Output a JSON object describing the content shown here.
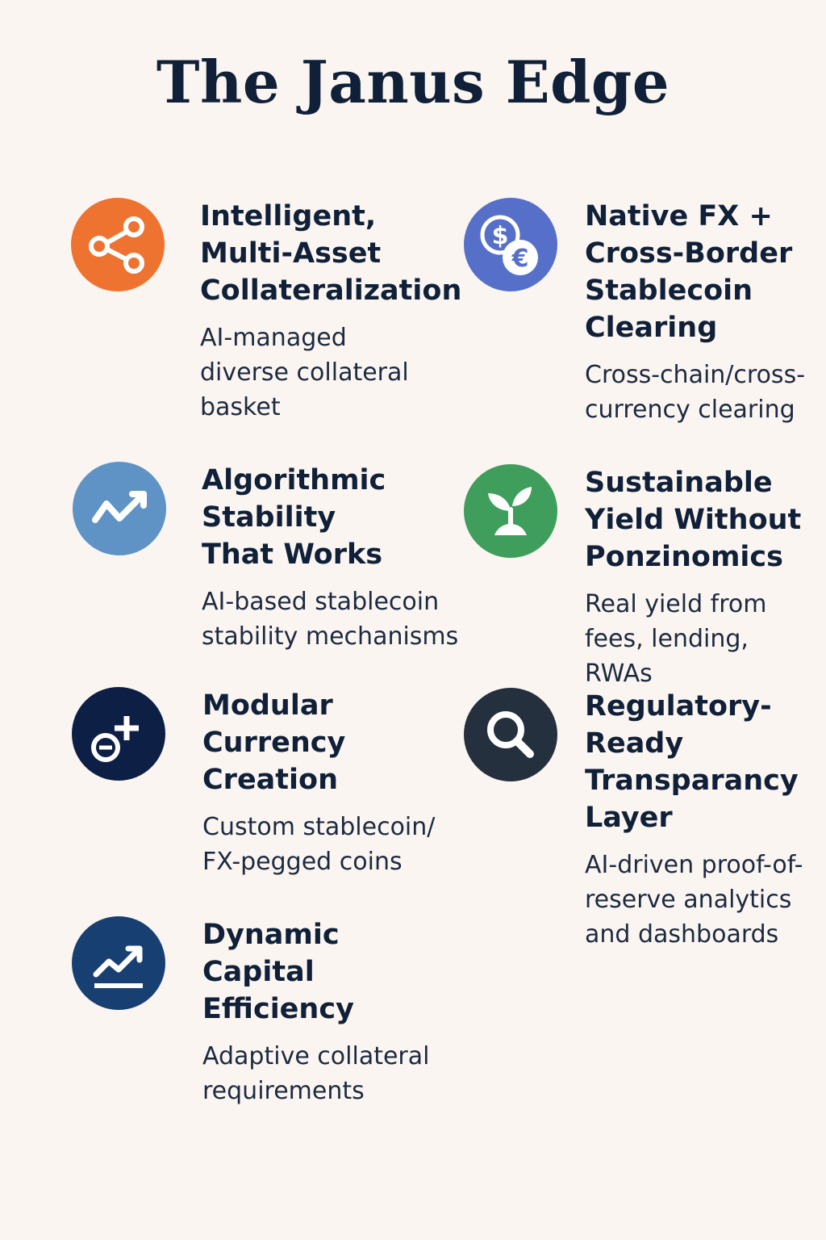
{
  "title": "The Janus Edge",
  "colors": {
    "background": "#fbf5f1",
    "orange": "#ee7330",
    "indigo": "#5670c9",
    "steel_blue": "#5f93c6",
    "green": "#3f9e5b",
    "navy": "#0d1f44",
    "charcoal": "#24303d",
    "dark_blue": "#183f72"
  },
  "features": [
    {
      "icon": "share-icon",
      "title": "Intelligent, Multi-Asset Collateralization",
      "description": "AI-managed diverse collateral basket"
    },
    {
      "icon": "currency-exchange-icon",
      "title": "Native FX + Cross-Border Stablecoin Clearing",
      "description": "Cross-chain/cross-currency clearing"
    },
    {
      "icon": "trend-line-icon",
      "title": "Algorithmic Stability That Works",
      "description": "AI-based stablecoin stability mechanisms"
    },
    {
      "icon": "sprout-icon",
      "title": "Sustainable Yield Without Ponzinomics",
      "description": "Real yield from fees, lending, RWAs"
    },
    {
      "icon": "coin-plus-icon",
      "title": "Modular Currency Creation",
      "description": "Custom stablecoin/ FX-pegged coins"
    },
    {
      "icon": "magnifier-icon",
      "title": "Regulatory-Ready Transparancy Layer",
      "description": "AI-driven proof-of-reserve analytics and dashboards"
    },
    {
      "icon": "growth-chart-icon",
      "title": "Dynamic Capital Efficiency",
      "description": "Adaptive collateral requirements"
    }
  ]
}
